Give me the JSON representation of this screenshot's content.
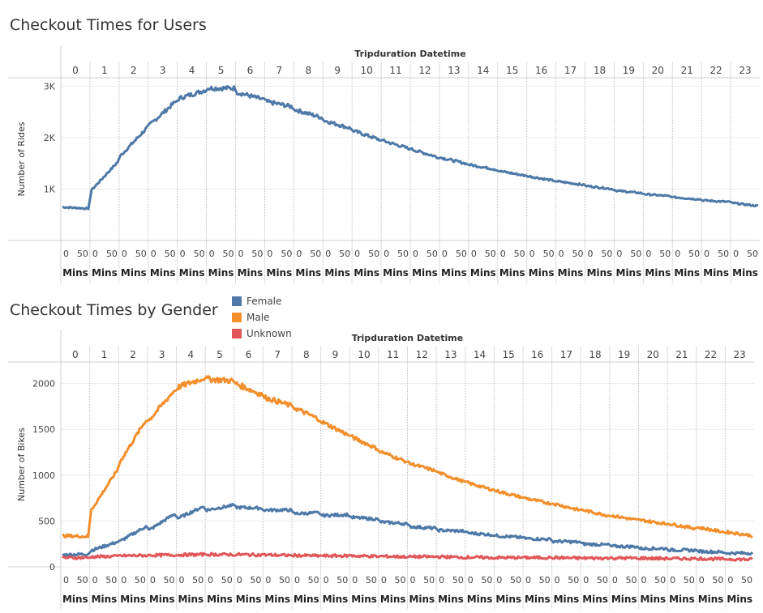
{
  "charts": [
    {
      "title": "Checkout Times for Users",
      "header_label": "Tripduration Datetime",
      "y_label": "Number of Rides",
      "minute_ticks": [
        "0",
        "50"
      ],
      "unit_label": "Mins",
      "y_ticks": [
        {
          "value": 1000,
          "label": "1K"
        },
        {
          "value": 2000,
          "label": "2K"
        },
        {
          "value": 3000,
          "label": "3K"
        }
      ]
    },
    {
      "title": "Checkout Times by Gender",
      "header_label": "Tripduration Datetime",
      "y_label": "Number of Bikes",
      "minute_ticks": [
        "0",
        "50"
      ],
      "unit_label": "Mins",
      "y_ticks": [
        {
          "value": 0,
          "label": "0"
        },
        {
          "value": 500,
          "label": "500"
        },
        {
          "value": 1000,
          "label": "1000"
        },
        {
          "value": 1500,
          "label": "1500"
        },
        {
          "value": 2000,
          "label": "2000"
        }
      ]
    }
  ],
  "legend": [
    {
      "name": "Female",
      "color": "#4e79a7"
    },
    {
      "name": "Male",
      "color": "#f28e2b"
    },
    {
      "name": "Unknown",
      "color": "#e15759"
    }
  ],
  "chart_data": [
    {
      "type": "line",
      "title": "Checkout Times for Users",
      "xlabel": "Tripduration Datetime",
      "ylabel": "Number of Rides",
      "hours": [
        "0",
        "1",
        "2",
        "3",
        "4",
        "5",
        "6",
        "7",
        "8",
        "9",
        "10",
        "11",
        "12",
        "13",
        "14",
        "15",
        "16",
        "17",
        "18",
        "19",
        "20",
        "21",
        "22",
        "23"
      ],
      "ylim": [
        0,
        3100
      ],
      "grid": true,
      "series": [
        {
          "color": "#4e79a7",
          "hour_start": [
            650,
            980,
            1650,
            2250,
            2760,
            2960,
            2880,
            2700,
            2540,
            2330,
            2130,
            1940,
            1770,
            1610,
            1470,
            1350,
            1250,
            1150,
            1060,
            970,
            900,
            840,
            780,
            730
          ],
          "hour_end": [
            620,
            1520,
            2180,
            2700,
            2920,
            2960,
            2740,
            2600,
            2390,
            2180,
            1960,
            1790,
            1620,
            1490,
            1380,
            1260,
            1160,
            1080,
            1000,
            920,
            860,
            800,
            750,
            670
          ]
        }
      ]
    },
    {
      "type": "line",
      "title": "Checkout Times by Gender",
      "xlabel": "Tripduration Datetime",
      "ylabel": "Number of Bikes",
      "hours": [
        "0",
        "1",
        "2",
        "3",
        "4",
        "5",
        "6",
        "7",
        "8",
        "9",
        "10",
        "11",
        "12",
        "13",
        "14",
        "15",
        "16",
        "17",
        "18",
        "19",
        "20",
        "21",
        "22",
        "23"
      ],
      "ylim": [
        0,
        2200
      ],
      "grid": true,
      "series": [
        {
          "name": "Female",
          "color": "#4e79a7",
          "hour_start": [
            130,
            180,
            280,
            400,
            530,
            620,
            650,
            620,
            580,
            560,
            540,
            490,
            440,
            400,
            370,
            340,
            310,
            280,
            250,
            225,
            200,
            185,
            170,
            150
          ],
          "hour_end": [
            140,
            270,
            440,
            580,
            660,
            670,
            640,
            620,
            590,
            570,
            520,
            470,
            420,
            390,
            350,
            320,
            300,
            270,
            240,
            220,
            200,
            180,
            160,
            150
          ]
        },
        {
          "name": "Male",
          "color": "#f28e2b",
          "hour_start": [
            340,
            620,
            1150,
            1600,
            1960,
            2050,
            2000,
            1850,
            1740,
            1580,
            1420,
            1260,
            1130,
            1030,
            920,
            830,
            750,
            690,
            620,
            560,
            510,
            470,
            430,
            380
          ],
          "hour_end": [
            330,
            1050,
            1600,
            1930,
            2060,
            2030,
            1880,
            1760,
            1610,
            1440,
            1290,
            1150,
            1050,
            930,
            840,
            760,
            690,
            620,
            560,
            510,
            470,
            420,
            380,
            340
          ]
        },
        {
          "name": "Unknown",
          "color": "#e15759",
          "hour_start": [
            100,
            110,
            120,
            125,
            130,
            135,
            135,
            130,
            125,
            120,
            120,
            115,
            110,
            110,
            105,
            100,
            100,
            100,
            95,
            95,
            95,
            90,
            90,
            85
          ],
          "hour_end": [
            100,
            115,
            125,
            130,
            135,
            135,
            130,
            125,
            120,
            120,
            115,
            110,
            110,
            105,
            100,
            100,
            100,
            95,
            95,
            95,
            90,
            90,
            85,
            80
          ]
        }
      ]
    }
  ]
}
